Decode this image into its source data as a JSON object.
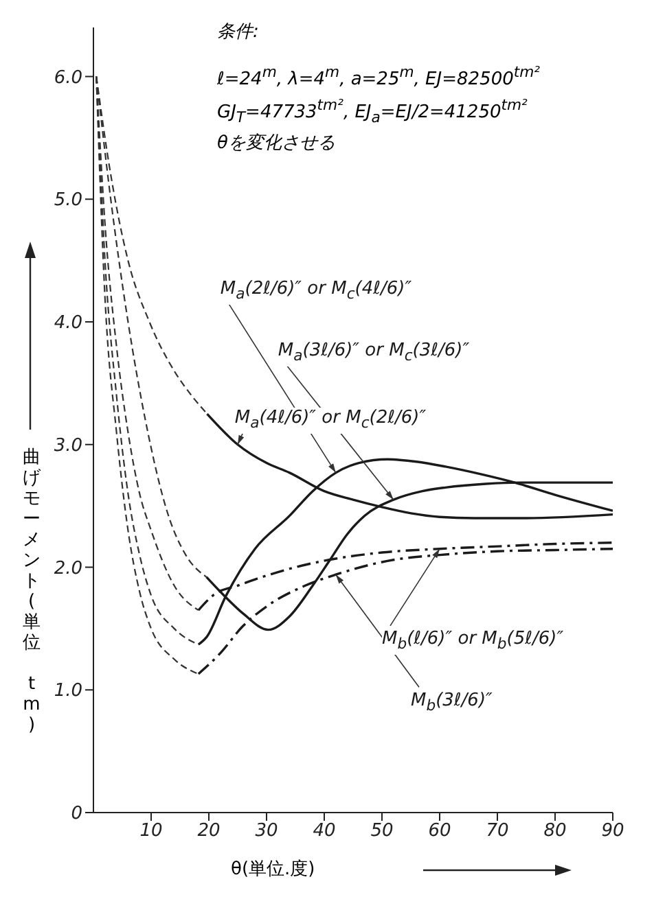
{
  "chart_data": {
    "type": "line",
    "xlabel": "θ(単位.度)",
    "ylabel": "曲げモーメント(単位 tm)",
    "annotations": [
      "条件:",
      "ℓ=24$^{m}$, λ=4$^{m}$, a=25$^{m}$, EJ=82500$^{tm²}$",
      "GJ$_{T}$=47733$^{tm²}$, EJ$_{a}$=EJ/2=41250$^{tm²}$",
      "θを変化させる"
    ],
    "xlim": [
      0,
      90
    ],
    "xticks": [
      10,
      20,
      30,
      40,
      50,
      60,
      70,
      80,
      90
    ],
    "ylim": [
      0,
      6.4
    ],
    "yticks": [
      {
        "value": 0,
        "label": "0"
      },
      {
        "value": 1,
        "label": "1.0"
      },
      {
        "value": 2,
        "label": "2.0"
      },
      {
        "value": 3,
        "label": "3.0"
      },
      {
        "value": 4,
        "label": "4.0"
      },
      {
        "value": 5,
        "label": "5.0"
      },
      {
        "value": 6,
        "label": "6.0"
      }
    ],
    "marker": "none",
    "series": [
      {
        "name": "M$_{a}$(2ℓ/6)″ or M$_{c}$(4ℓ/6)″",
        "color": "#1a1a1a",
        "line_style": "solid",
        "x": [
          18.2,
          19.6,
          23,
          28,
          34,
          38,
          42,
          46,
          51,
          56,
          61,
          67,
          73,
          80,
          90
        ],
        "values": [
          1.37,
          1.43,
          1.77,
          2.15,
          2.42,
          2.62,
          2.77,
          2.85,
          2.88,
          2.86,
          2.82,
          2.76,
          2.69,
          2.59,
          2.46
        ]
      },
      {
        "name": "M$_{a}$(3ℓ/6)″ or M$_{c}$(3ℓ/6)″",
        "color": "#1a1a1a",
        "line_style": "solid",
        "x": [
          19.6,
          22,
          26,
          30.3,
          34,
          38,
          41,
          44,
          47,
          52,
          57,
          61,
          68,
          74,
          90
        ],
        "values": [
          1.92,
          1.8,
          1.62,
          1.49,
          1.6,
          1.85,
          2.06,
          2.27,
          2.42,
          2.55,
          2.62,
          2.65,
          2.68,
          2.69,
          2.69
        ]
      },
      {
        "name": "M$_{a}$(4ℓ/6)″ or M$_{c}$(2ℓ/6)″",
        "color": "#1a1a1a",
        "line_style": "solid",
        "x": [
          19.7,
          25,
          30,
          34,
          40,
          45,
          50,
          55,
          60,
          66,
          75,
          90
        ],
        "values": [
          3.25,
          3.0,
          2.85,
          2.77,
          2.62,
          2.55,
          2.49,
          2.44,
          2.41,
          2.4,
          2.4,
          2.43
        ]
      },
      {
        "name": "M$_{b}$(ℓ/6)″ or M$_{b}$(5ℓ/6)″",
        "color": "#1a1a1a",
        "line_style": "dashdot",
        "x": [
          18.2,
          21,
          25,
          28.6,
          35,
          42,
          50,
          60,
          70,
          80,
          90
        ],
        "values": [
          1.65,
          1.78,
          1.85,
          1.91,
          2.0,
          2.07,
          2.12,
          2.15,
          2.17,
          2.19,
          2.2
        ]
      },
      {
        "name": "M$_{b}$(3ℓ/6)″",
        "color": "#1a1a1a",
        "line_style": "dashdot",
        "x": [
          18.2,
          22,
          25.9,
          30,
          36.7,
          42,
          52,
          60,
          70,
          80,
          90
        ],
        "values": [
          1.13,
          1.3,
          1.52,
          1.68,
          1.85,
          1.94,
          2.06,
          2.1,
          2.13,
          2.14,
          2.15
        ]
      },
      {
        "color": "#333333",
        "line_style": "dashed",
        "x": [
          0.5,
          2,
          4,
          6,
          8,
          10,
          14,
          18.2
        ],
        "values": [
          6.0,
          4.5,
          3.4,
          2.6,
          2.1,
          1.77,
          1.5,
          1.37
        ]
      },
      {
        "color": "#333333",
        "line_style": "dashed",
        "x": [
          0.5,
          3,
          6,
          9,
          13,
          16,
          19.6
        ],
        "values": [
          6.0,
          5.0,
          4.0,
          3.2,
          2.42,
          2.1,
          1.92
        ]
      },
      {
        "color": "#333333",
        "line_style": "dashed",
        "x": [
          0.5,
          3,
          6,
          9.7,
          14,
          17,
          19.7
        ],
        "values": [
          6.0,
          5.2,
          4.5,
          4.0,
          3.6,
          3.4,
          3.25
        ]
      },
      {
        "color": "#333333",
        "line_style": "dashed",
        "x": [
          0.5,
          2,
          4,
          6,
          8,
          10,
          14,
          18.2
        ],
        "values": [
          6.0,
          4.8,
          3.8,
          3.1,
          2.6,
          2.3,
          1.85,
          1.65
        ]
      },
      {
        "color": "#333333",
        "line_style": "dashed",
        "x": [
          0.5,
          2,
          4,
          6,
          8,
          10,
          14,
          18.2
        ],
        "values": [
          6.0,
          4.2,
          3.1,
          2.3,
          1.8,
          1.5,
          1.25,
          1.13
        ]
      }
    ]
  }
}
